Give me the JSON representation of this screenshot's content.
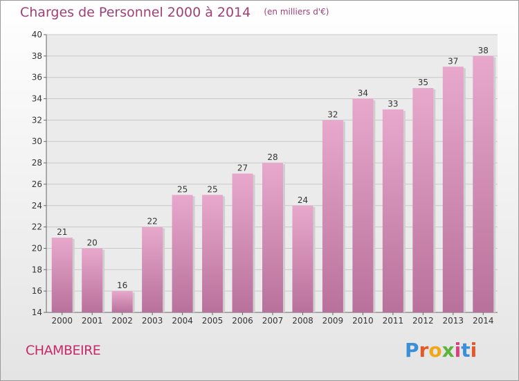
{
  "header": {
    "title": "Charges de Personnel 2000 à 2014",
    "unit": "(en milliers d'€)"
  },
  "footer": {
    "place": "CHAMBEIRE",
    "logo_text": "Proxiti",
    "logo_colors": [
      "#3a8fd8",
      "#e2592a",
      "#f0a81b",
      "#5db33b",
      "#d9407e",
      "#3a8fd8",
      "#e2592a"
    ]
  },
  "colors": {
    "bar_top": "#e8a8cc",
    "bar_bottom": "#b8719b",
    "accent": "#9e3f78",
    "grid": "#c8c8c8"
  },
  "chart_data": {
    "type": "bar",
    "title": "Charges de Personnel 2000 à 2014",
    "categories": [
      "2000",
      "2001",
      "2002",
      "2003",
      "2004",
      "2005",
      "2006",
      "2007",
      "2008",
      "2009",
      "2010",
      "2011",
      "2012",
      "2013",
      "2014"
    ],
    "values": [
      21,
      20,
      16,
      22,
      25,
      25,
      27,
      28,
      24,
      32,
      34,
      33,
      35,
      37,
      38
    ],
    "ylim": [
      14,
      40
    ],
    "yticks": [
      14,
      16,
      18,
      20,
      22,
      24,
      26,
      28,
      30,
      32,
      34,
      36,
      38,
      40
    ],
    "grid": true
  }
}
